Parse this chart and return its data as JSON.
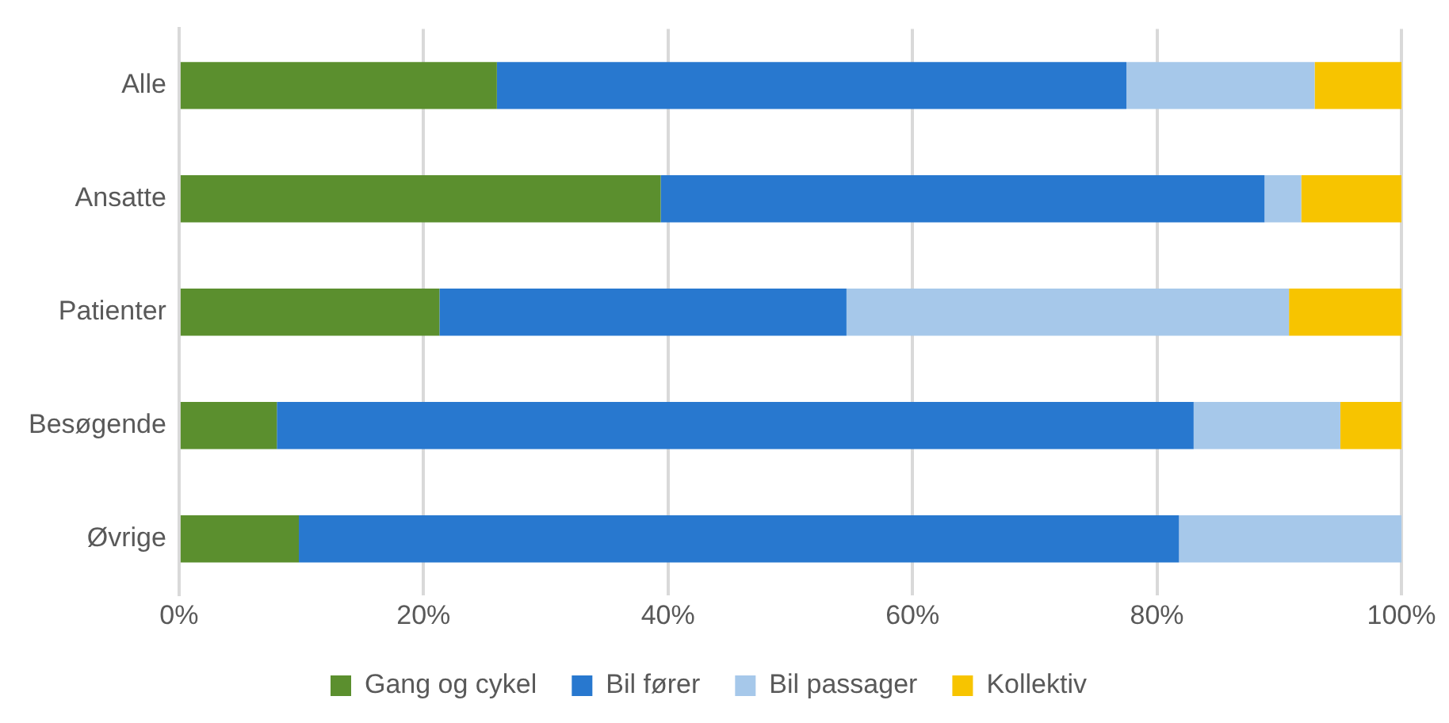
{
  "chart_data": {
    "type": "bar",
    "orientation": "horizontal",
    "stacked": true,
    "categories": [
      "Alle",
      "Ansatte",
      "Patienter",
      "Besøgende",
      "Øvrige"
    ],
    "series": [
      {
        "name": "Gang og cykel",
        "color": "#5b8f2e",
        "values": [
          26.0,
          39.4,
          21.3,
          8.0,
          9.8
        ]
      },
      {
        "name": "Bil fører",
        "color": "#2878cf",
        "values": [
          51.5,
          49.4,
          33.3,
          75.0,
          72.0
        ]
      },
      {
        "name": "Bil passager",
        "color": "#a6c8ea",
        "values": [
          15.4,
          3.0,
          36.2,
          12.0,
          18.2
        ]
      },
      {
        "name": "Kollektiv",
        "color": "#f7c400",
        "values": [
          7.1,
          8.2,
          9.2,
          5.0,
          0
        ]
      }
    ],
    "xlim": [
      0,
      100
    ],
    "xticks": [
      {
        "value": 0,
        "label": "0%"
      },
      {
        "value": 20,
        "label": "20%"
      },
      {
        "value": 40,
        "label": "40%"
      },
      {
        "value": 60,
        "label": "60%"
      },
      {
        "value": 80,
        "label": "80%"
      },
      {
        "value": 100,
        "label": "100%"
      }
    ],
    "grid": "x",
    "legend": "bottom"
  }
}
